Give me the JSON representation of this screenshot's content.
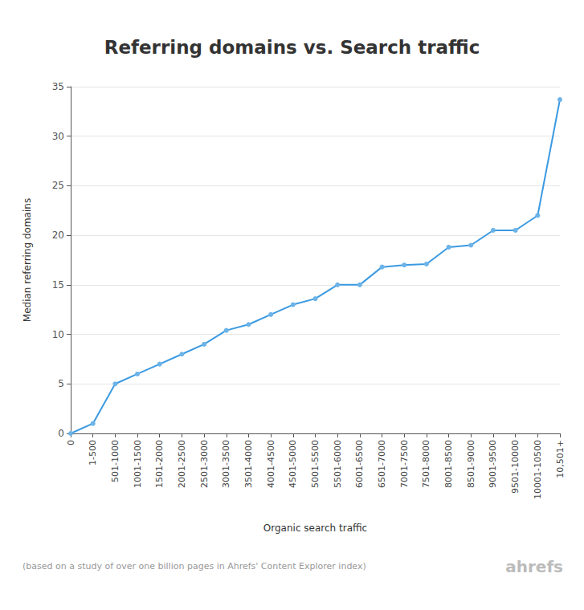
{
  "chart_data": {
    "type": "line",
    "title": "Referring domains vs. Search traffic",
    "x_label": "Organic search traffic",
    "y_label": "Median referring domains",
    "annotations": [
      "(based on a study of over one billion pages in Ahrefs' Content Explorer index)",
      "ahrefs"
    ],
    "categories": [
      "0",
      "1-500",
      "501-1000",
      "1001-1500",
      "1501-2000",
      "2001-2500",
      "2501-3000",
      "3001-3500",
      "3501-4000",
      "4001-4500",
      "4501-5000",
      "5001-5500",
      "5501-6000",
      "6001-6500",
      "6501-7000",
      "7001-7500",
      "7501-8000",
      "8001-8500",
      "8501-9000",
      "9001-9500",
      "9501-10000",
      "10001-10500",
      "10,501+"
    ],
    "values": [
      0,
      1,
      5,
      6,
      7,
      8,
      9,
      10.4,
      11,
      12,
      13,
      13.6,
      15,
      15,
      16.8,
      17,
      17.1,
      18.8,
      19,
      20.5,
      20.5,
      22,
      33.7
    ],
    "color": "#3b9ae1",
    "marker": "circle",
    "ylim": [
      0,
      35
    ],
    "yticks": [
      0,
      5,
      10,
      15,
      20,
      25,
      30,
      35
    ],
    "grid": true
  }
}
